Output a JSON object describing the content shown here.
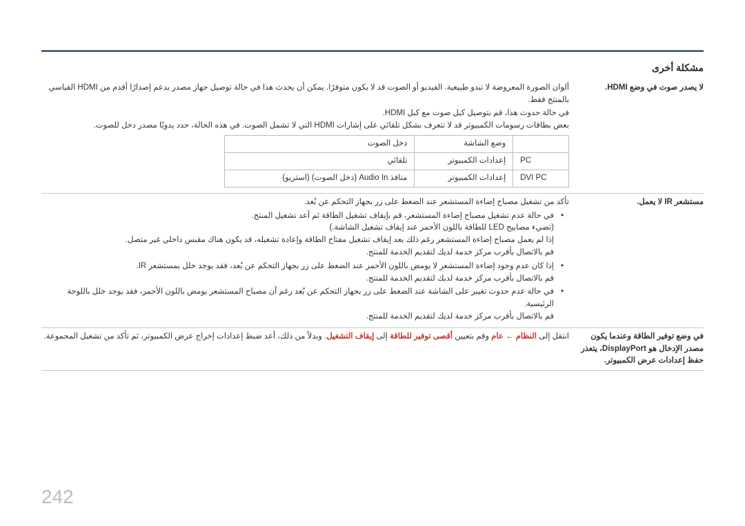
{
  "section_title": "مشكلة أخرى",
  "page_number": "242",
  "rows": [
    {
      "label": "لا يصدر صوت في وضع HDMI.",
      "paragraphs": [
        "ألوان الصورة المعروضة لا تبدو طبيعية. الفيديو أو الصوت قد لا يكون متوفرًا. يمكن أن يحدث هذا في حالة توصيل جهاز مصدر يدعم إصدارًا أقدم من HDMI القياسي بالمنتج فقط.",
        "في حالة حدوث هذا، قم بتوصيل كبل صوت مع كبل HDMI.",
        "بعض بطاقات رسومات الكمبيوتر قد لا تتعرف بشكل تلقائي على إشارات HDMI التي لا تشمل الصوت. في هذه الحالة، حدد يدويًا مصدر دخل للصوت."
      ],
      "table": {
        "headers": [
          "",
          "وضع الشاشة",
          "دخل الصوت"
        ],
        "rows": [
          [
            "PC",
            "إعدادات الكمبيوتر",
            "تلقائي"
          ],
          [
            "DVI PC",
            "إعدادات الكمبيوتر",
            "منافذ Audio In (دخل الصوت) (استريو)"
          ]
        ]
      }
    },
    {
      "label": "مستشعر IR لا يعمل.",
      "paragraphs": [
        "تأكد من تشغيل مصباح إضاءة المستشعر عند الضغط على زر بجهاز التحكم عن بُعد."
      ],
      "bullets": [
        "في حالة عدم تشغيل مصباح إضاءة المستشعر، قم بإيقاف تشغيل الطاقة ثم أعد تشغيل المنتج.\n(تضيء مصابيح LED للطاقة باللون الأحمر عند إيقاف تشغيل الشاشة.)\nإذا لم يعمل مصباح إضاءة المستشعر رغم ذلك بعد إيقاف تشغيل مفتاح الطاقة وإعادة تشغيله، قد يكون هناك مقبس داخلي غير متصل.\nقم بالاتصال بأقرب مركز خدمة لديك لتقديم الخدمة للمنتج.",
        "إذا كان عدم وجود إضاءة المستشعر لا يومض باللون الأحمر عند الضغط على زر بجهاز التحكم عن بُعد، فقد يوجد خلل بمستشعر IR.\nقم بالاتصال بأقرب مركز خدمة لديك لتقديم الخدمة للمنتج.",
        "في حالة عدم حدوث تغيير على الشاشة عند الضغط على زر بجهاز التحكم عن بُعد رغم أن مصباح المستشعر يومض باللون الأحمر، فقد يوجد خلل باللوحة الرئيسية.\nقم بالاتصال بأقرب مركز خدمة لديك لتقديم الخدمة للمنتج."
      ]
    },
    {
      "label_html": "في وضع توفير الطاقة وعندما يكون مصدر الإدخال هو <span dir=\"ltr\">DisplayPort</span>، يتعذر حفظ إعدادات عرض الكمبيوتر.",
      "label_bold": true,
      "paragraphs_html": [
        "انتقل إلى <span class=\"highlight\">النظام</span> ← <span class=\"highlight\">عام</span> وقم بتعيين <span class=\"highlight\">أقصى توفير للطاقة</span> إلى <span class=\"highlight\">إيقاف التشغيل</span>. وبدلاً من ذلك، أعد ضبط إعدادات إخراج عرض الكمبيوتر، ثم تأكد من تشغيل المجموعة."
      ]
    }
  ]
}
